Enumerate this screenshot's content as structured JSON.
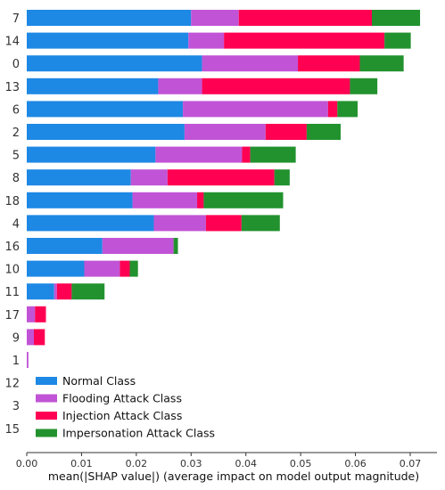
{
  "chart_data": {
    "type": "bar",
    "orientation": "horizontal",
    "stacked": true,
    "categories": [
      "7",
      "14",
      "0",
      "13",
      "6",
      "2",
      "5",
      "8",
      "18",
      "4",
      "16",
      "10",
      "11",
      "17",
      "9",
      "1",
      "12",
      "3",
      "15"
    ],
    "series": [
      {
        "name": "Normal Class",
        "color": "#1e88e5",
        "values": [
          0.03,
          0.0295,
          0.032,
          0.024,
          0.0285,
          0.0288,
          0.0235,
          0.019,
          0.0193,
          0.0232,
          0.0138,
          0.0105,
          0.005,
          0.0,
          0.0,
          0.0,
          0.0,
          0.0,
          0.0
        ]
      },
      {
        "name": "Flooding Attack Class",
        "color": "#c154d6",
        "values": [
          0.0087,
          0.0065,
          0.0175,
          0.008,
          0.0265,
          0.0148,
          0.0158,
          0.0067,
          0.0118,
          0.0095,
          0.013,
          0.0065,
          0.0005,
          0.0015,
          0.0013,
          0.0003,
          0.0,
          0.0,
          0.0
        ]
      },
      {
        "name": "Injection Attack Class",
        "color": "#ff0052",
        "values": [
          0.0243,
          0.0293,
          0.0113,
          0.027,
          0.0017,
          0.0075,
          0.0015,
          0.0195,
          0.0012,
          0.0065,
          0.0,
          0.0018,
          0.0027,
          0.002,
          0.002,
          0.0,
          0.0,
          0.0,
          0.0
        ]
      },
      {
        "name": "Impersonation Attack Class",
        "color": "#22922f",
        "values": [
          0.0088,
          0.0048,
          0.008,
          0.005,
          0.0037,
          0.0062,
          0.0083,
          0.0028,
          0.0145,
          0.007,
          0.0008,
          0.0015,
          0.006,
          0.0,
          0.0,
          0.0,
          0.0,
          0.0,
          0.0
        ]
      }
    ],
    "xlim": [
      0,
      0.075
    ],
    "xticks": [
      "0.00",
      "0.01",
      "0.02",
      "0.03",
      "0.04",
      "0.05",
      "0.06",
      "0.07"
    ],
    "xlabel": "mean(|SHAP value|) (average impact on model output magnitude)",
    "ylabel": "",
    "title": "",
    "legend_position": "bottom-left",
    "grid": false
  }
}
